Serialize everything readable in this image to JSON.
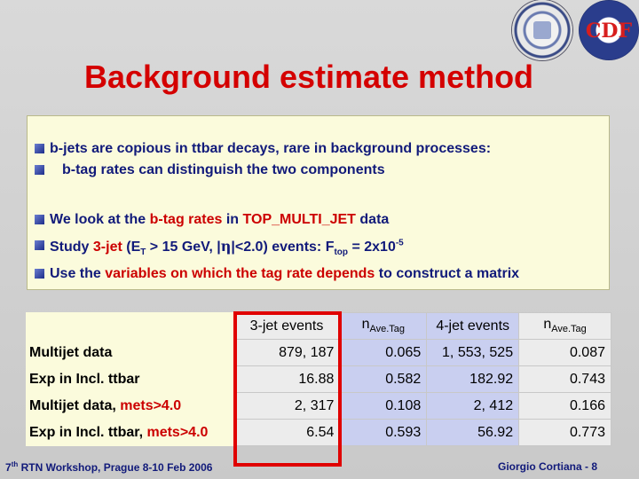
{
  "header": {
    "title": "Background estimate method",
    "logo_right_text": "CDF"
  },
  "bullets": {
    "b1_line1": "b-jets are copious in ttbar decays, rare in background processes:",
    "b1_line2": "b-tag rates can distinguish the two components",
    "b2_pre": "We look at the ",
    "b2_red": "b-tag rates",
    "b2_mid": " in ",
    "b2_red2": "TOP_MULTI_JET",
    "b2_post": " data",
    "b3_pre": "Study ",
    "b3_red": "3-jet",
    "b3_mid1": " (E",
    "b3_sub": "T",
    "b3_mid2": " > 15 GeV, |",
    "b3_eta": "η",
    "b3_mid3": "|<2.0) events:   F",
    "b3_sub2": "top",
    "b3_mid4": " = 2x10",
    "b3_sup": "-5",
    "b4_pre": "Use the ",
    "b4_red": "variables on which the tag rate depends",
    "b4_post": " to construct a matrix"
  },
  "table": {
    "headers": [
      "3-jet events",
      "n",
      "Ave.Tag",
      "4-jet events",
      "n",
      "Ave.Tag"
    ],
    "rows": [
      {
        "label": "Multijet data",
        "label_red": "",
        "c1": "879, 187",
        "c2": "0.065",
        "c3": "1, 553, 525",
        "c4": "0.087"
      },
      {
        "label": "Exp in Incl. ttbar",
        "label_red": "",
        "c1": "16.88",
        "c2": "0.582",
        "c3": "182.92",
        "c4": "0.743"
      },
      {
        "label": "Multijet data, ",
        "label_red": "mets>4.0",
        "c1": "2, 317",
        "c2": "0.108",
        "c3": "2, 412",
        "c4": "0.166"
      },
      {
        "label": "Exp in Incl. ttbar, ",
        "label_red": "mets>4.0",
        "c1": "6.54",
        "c2": "0.593",
        "c3": "56.92",
        "c4": "0.773"
      }
    ]
  },
  "footer": {
    "left_sup": "th",
    "left_pre": "7",
    "left_post": " RTN Workshop, Prague 8-10 Feb 2006",
    "right": "Giorgio Cortiana  -   8"
  },
  "colors": {
    "title": "#d40000",
    "text": "#111a7a",
    "highlight_box": "#e00000",
    "panel": "#fbfbdc",
    "cell_blue": "#c9cff0"
  }
}
